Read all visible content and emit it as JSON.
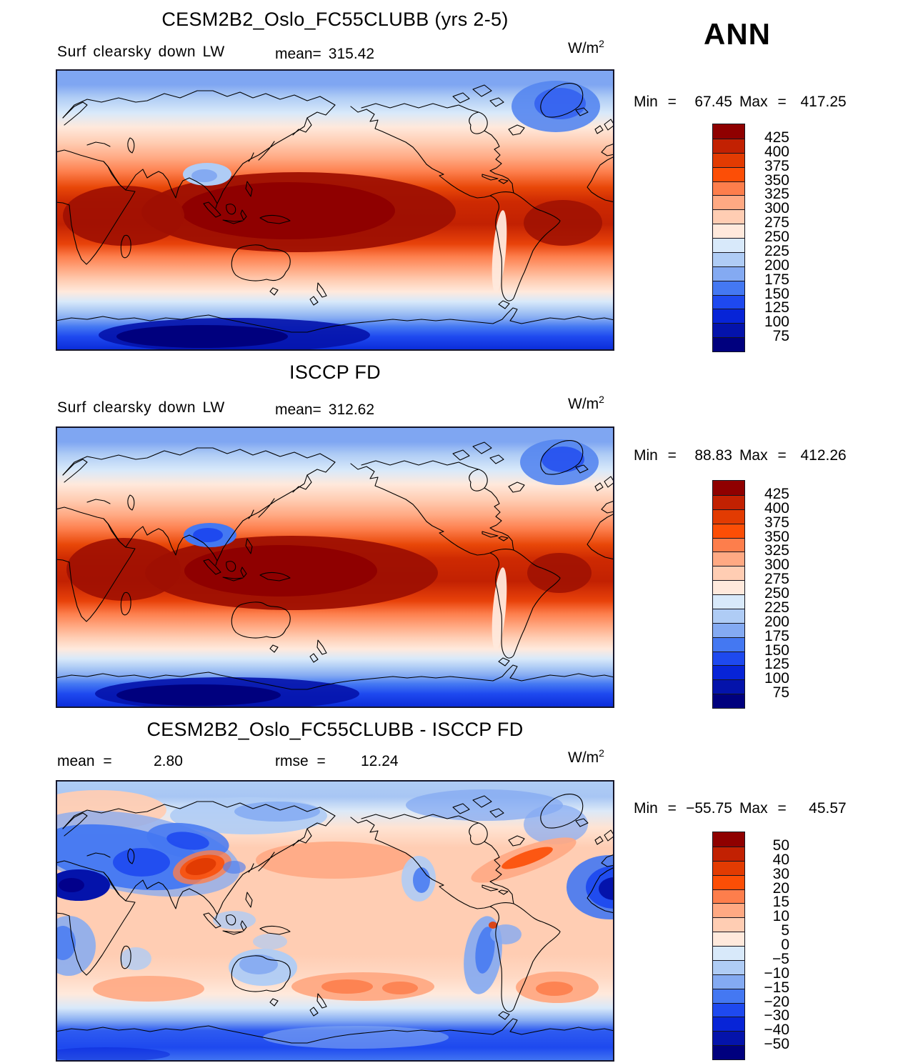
{
  "header": {
    "season_label": "ANN"
  },
  "chart_data": {
    "type": "heatmap",
    "subtype": "global-latlon-contour-map-set",
    "season": "ANN",
    "units": "W/m^2",
    "units_base": "W/m",
    "units_sup": "2",
    "palette": [
      "#8F0000",
      "#C22102",
      "#E23B02",
      "#FC4E06",
      "#FD7E4C",
      "#FFA983",
      "#FFCDB3",
      "#FFE9DC",
      "#D8E9FA",
      "#AFCCF5",
      "#84AAF2",
      "#4478F2",
      "#1E49EF",
      "#0724D7",
      "#0413AB",
      "#00007E"
    ],
    "palette_order": "top(max)-to-bottom(min)",
    "panels": [
      {
        "id": "model",
        "title": "CESM2B2_Oslo_FC55CLUBB (yrs 2-5)",
        "variable": "Surf clearsky down LW",
        "mean_label": "mean=",
        "mean": "315.42",
        "min_label": "Min =",
        "min": "67.45",
        "max_label": "Max =",
        "max": "417.25",
        "levels": [
          75,
          100,
          125,
          150,
          175,
          200,
          225,
          250,
          275,
          300,
          325,
          350,
          375,
          400,
          425
        ],
        "colorbar_labels": [
          "425",
          "400",
          "375",
          "350",
          "325",
          "300",
          "275",
          "250",
          "225",
          "200",
          "175",
          "150",
          "125",
          "100",
          "75"
        ]
      },
      {
        "id": "obs",
        "title": "ISCCP FD",
        "variable": "Surf clearsky down LW",
        "mean_label": "mean=",
        "mean": "312.62",
        "min_label": "Min =",
        "min": "88.83",
        "max_label": "Max =",
        "max": "412.26",
        "levels": [
          75,
          100,
          125,
          150,
          175,
          200,
          225,
          250,
          275,
          300,
          325,
          350,
          375,
          400,
          425
        ],
        "colorbar_labels": [
          "425",
          "400",
          "375",
          "350",
          "325",
          "300",
          "275",
          "250",
          "225",
          "200",
          "175",
          "150",
          "125",
          "100",
          "75"
        ]
      },
      {
        "id": "diff",
        "title": "CESM2B2_Oslo_FC55CLUBB - ISCCP FD",
        "mean_label": "mean =",
        "mean": "2.80",
        "rmse_label": "rmse =",
        "rmse": "12.24",
        "min_label": "Min =",
        "min": "−55.75",
        "max_label": "Max =",
        "max": "45.57",
        "levels": [
          -50,
          -40,
          -30,
          -20,
          -15,
          -10,
          -5,
          0,
          5,
          10,
          15,
          20,
          30,
          40,
          50
        ],
        "colorbar_labels": [
          "50",
          "40",
          "30",
          "20",
          "15",
          "10",
          "5",
          "0",
          "−5",
          "−10",
          "−15",
          "−20",
          "−30",
          "−40",
          "−50"
        ]
      }
    ]
  }
}
